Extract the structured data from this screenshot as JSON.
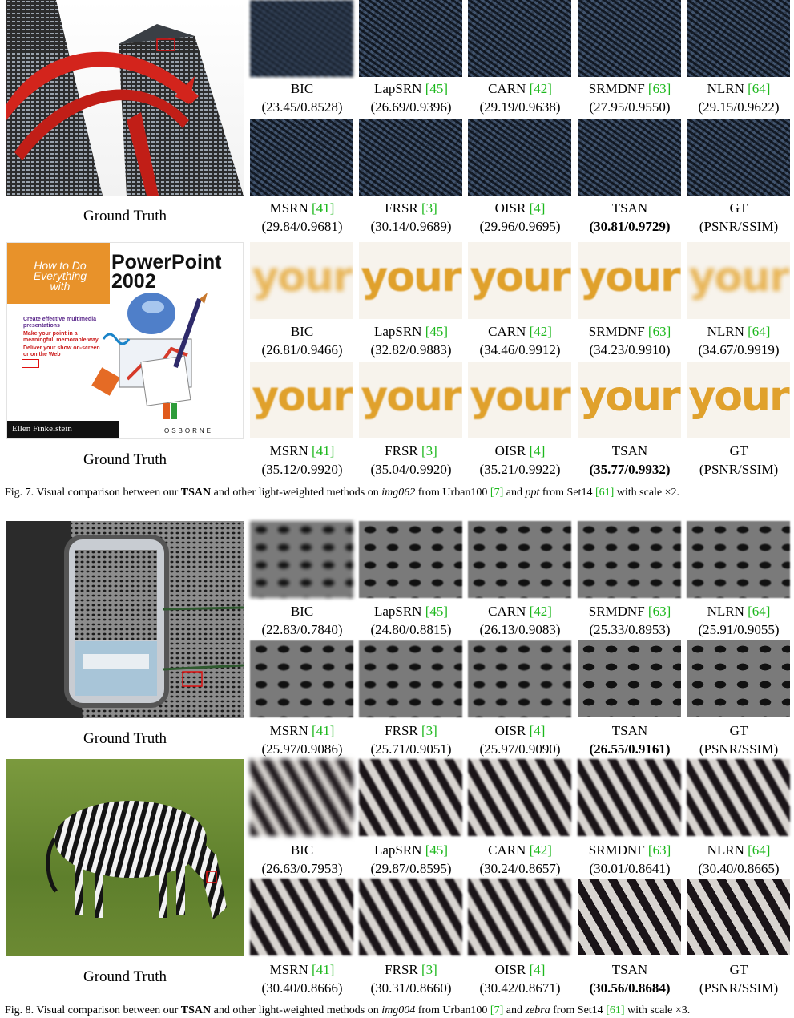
{
  "figures": [
    {
      "id": "fig7",
      "rows": [
        {
          "ground_truth_label": "Ground Truth",
          "image": "building",
          "crops": [
            {
              "method": "BIC",
              "ref": "",
              "metric": "(23.45/0.8528)",
              "best": false
            },
            {
              "method": "LapSRN",
              "ref": "[45]",
              "metric": "(26.69/0.9396)",
              "best": false
            },
            {
              "method": "CARN",
              "ref": "[42]",
              "metric": "(29.19/0.9638)",
              "best": false
            },
            {
              "method": "SRMDNF",
              "ref": "[63]",
              "metric": "(27.95/0.9550)",
              "best": false
            },
            {
              "method": "NLRN",
              "ref": "[64]",
              "metric": "(29.15/0.9622)",
              "best": false
            },
            {
              "method": "MSRN",
              "ref": "[41]",
              "metric": "(29.84/0.9681)",
              "best": false
            },
            {
              "method": "FRSR",
              "ref": "[3]",
              "metric": "(30.14/0.9689)",
              "best": false
            },
            {
              "method": "OISR",
              "ref": "[4]",
              "metric": "(29.96/0.9695)",
              "best": false
            },
            {
              "method": "TSAN",
              "ref": "",
              "metric": "(30.81/0.9729)",
              "best": true
            },
            {
              "method": "GT",
              "ref": "",
              "metric": "(PSNR/SSIM)",
              "best": false
            }
          ]
        },
        {
          "ground_truth_label": "Ground Truth",
          "image": "book",
          "book": {
            "how_to": "How to Do",
            "everything": "Everything",
            "with": "with",
            "title1": "PowerPoint",
            "title2": "2002",
            "blurb1": "Create effective multimedia presentations",
            "blurb2": "Make your point in a meaningful, memorable way",
            "blurb3": "Deliver your show on-screen or on the Web",
            "author": "Ellen Finkelstein",
            "publisher": "OSBORNE"
          },
          "crop_word": "your",
          "crops": [
            {
              "method": "BIC",
              "ref": "",
              "metric": "(26.81/0.9466)",
              "best": false
            },
            {
              "method": "LapSRN",
              "ref": "[45]",
              "metric": "(32.82/0.9883)",
              "best": false
            },
            {
              "method": "CARN",
              "ref": "[42]",
              "metric": "(34.46/0.9912)",
              "best": false
            },
            {
              "method": "SRMDNF",
              "ref": "[63]",
              "metric": "(34.23/0.9910)",
              "best": false
            },
            {
              "method": "NLRN",
              "ref": "[64]",
              "metric": "(34.67/0.9919)",
              "best": false
            },
            {
              "method": "MSRN",
              "ref": "[41]",
              "metric": "(35.12/0.9920)",
              "best": false
            },
            {
              "method": "FRSR",
              "ref": "[3]",
              "metric": "(35.04/0.9920)",
              "best": false
            },
            {
              "method": "OISR",
              "ref": "[4]",
              "metric": "(35.21/0.9922)",
              "best": false
            },
            {
              "method": "TSAN",
              "ref": "",
              "metric": "(35.77/0.9932)",
              "best": true
            },
            {
              "method": "GT",
              "ref": "",
              "metric": "(PSNR/SSIM)",
              "best": false
            }
          ]
        }
      ],
      "caption": {
        "prefix": "Fig. 7.  Visual comparison between our ",
        "bold": "TSAN",
        "mid1": " and other light-weighted methods on ",
        "img1": "img062",
        "mid2": " from Urban100 ",
        "ref1": "[7]",
        "mid3": " and ",
        "img2": "ppt",
        "mid4": " from Set14 ",
        "ref2": "[61]",
        "suffix": " with scale ×2."
      }
    },
    {
      "id": "fig8",
      "rows": [
        {
          "ground_truth_label": "Ground Truth",
          "image": "station",
          "crops": [
            {
              "method": "BIC",
              "ref": "",
              "metric": "(22.83/0.7840)",
              "best": false
            },
            {
              "method": "LapSRN",
              "ref": "[45]",
              "metric": "(24.80/0.8815)",
              "best": false
            },
            {
              "method": "CARN",
              "ref": "[42]",
              "metric": "(26.13/0.9083)",
              "best": false
            },
            {
              "method": "SRMDNF",
              "ref": "[63]",
              "metric": "(25.33/0.8953)",
              "best": false
            },
            {
              "method": "NLRN",
              "ref": "[64]",
              "metric": "(25.91/0.9055)",
              "best": false
            },
            {
              "method": "MSRN",
              "ref": "[41]",
              "metric": "(25.97/0.9086)",
              "best": false
            },
            {
              "method": "FRSR",
              "ref": "[3]",
              "metric": "(25.71/0.9051)",
              "best": false
            },
            {
              "method": "OISR",
              "ref": "[4]",
              "metric": "(25.97/0.9090)",
              "best": false
            },
            {
              "method": "TSAN",
              "ref": "",
              "metric": "(26.55/0.9161)",
              "best": true
            },
            {
              "method": "GT",
              "ref": "",
              "metric": "(PSNR/SSIM)",
              "best": false
            }
          ]
        },
        {
          "ground_truth_label": "Ground Truth",
          "image": "zebra",
          "crops": [
            {
              "method": "BIC",
              "ref": "",
              "metric": "(26.63/0.7953)",
              "best": false
            },
            {
              "method": "LapSRN",
              "ref": "[45]",
              "metric": "(29.87/0.8595)",
              "best": false
            },
            {
              "method": "CARN",
              "ref": "[42]",
              "metric": "(30.24/0.8657)",
              "best": false
            },
            {
              "method": "SRMDNF",
              "ref": "[63]",
              "metric": "(30.01/0.8641)",
              "best": false
            },
            {
              "method": "NLRN",
              "ref": "[64]",
              "metric": "(30.40/0.8665)",
              "best": false
            },
            {
              "method": "MSRN",
              "ref": "[41]",
              "metric": "(30.40/0.8666)",
              "best": false
            },
            {
              "method": "FRSR",
              "ref": "[3]",
              "metric": "(30.31/0.8660)",
              "best": false
            },
            {
              "method": "OISR",
              "ref": "[4]",
              "metric": "(30.42/0.8671)",
              "best": false
            },
            {
              "method": "TSAN",
              "ref": "",
              "metric": "(30.56/0.8684)",
              "best": true
            },
            {
              "method": "GT",
              "ref": "",
              "metric": "(PSNR/SSIM)",
              "best": false
            }
          ]
        }
      ],
      "caption": {
        "prefix": "Fig. 8.  Visual comparison between our ",
        "bold": "TSAN",
        "mid1": " and other light-weighted methods on ",
        "img1": "img004",
        "mid2": " from Urban100 ",
        "ref1": "[7]",
        "mid3": " and ",
        "img2": "zebra",
        "mid4": " from Set14 ",
        "ref2": "[61]",
        "suffix": " with scale ×3."
      }
    }
  ],
  "colors": {
    "reference_green": "#1db81d",
    "highlight_box": "#e01010",
    "book_orange": "#e8922a",
    "book_red": "#cc1f1f",
    "sculpture_red": "#d3241c"
  }
}
